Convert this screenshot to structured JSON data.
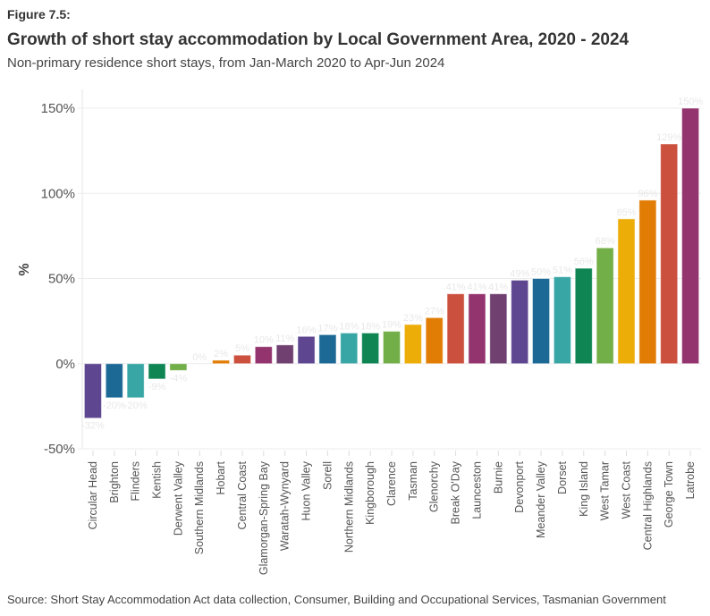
{
  "figure_label": "Figure 7.5:",
  "source": "Source: Short Stay Accommodation Act data collection, Consumer, Building and Occupational Services, Tasmanian Government",
  "chart_data": {
    "type": "bar",
    "title": "Growth of short stay accommodation by Local Government Area, 2020 - 2024",
    "subtitle": "Non-primary residence short stays, from Jan-March 2020 to Apr-Jun 2024",
    "xlabel": "",
    "ylabel": "%",
    "ylim": [
      -50,
      150
    ],
    "yticks": [
      -50,
      0,
      50,
      100,
      150
    ],
    "ytick_labels": [
      "-50%",
      "0%",
      "50%",
      "100%",
      "150%"
    ],
    "grid": true,
    "legend": "none",
    "categories": [
      "Circular Head",
      "Brighton",
      "Flinders",
      "Kentish",
      "Derwent Valley",
      "Southern Midlands",
      "Hobart",
      "Central Coast",
      "Glamorgan-Spring Bay",
      "Waratah-Wynyard",
      "Huon Valley",
      "Sorell",
      "Northern Midlands",
      "Kingborough",
      "Clarence",
      "Tasman",
      "Glenorchy",
      "Break O'Day",
      "Launceston",
      "Burnie",
      "Devonport",
      "Meander Valley",
      "Dorset",
      "King Island",
      "West Tamar",
      "West Coast",
      "Central Highlands",
      "George Town",
      "Latrobe"
    ],
    "values": [
      -32,
      -20,
      -20,
      -9,
      -4,
      0,
      2,
      5,
      10,
      11,
      16,
      17,
      18,
      18,
      19,
      23,
      27,
      41,
      41,
      41,
      49,
      50,
      51,
      56,
      68,
      85,
      96,
      129,
      150
    ],
    "data_labels": [
      "-32%",
      "-20%",
      "-20%",
      "-9%",
      "-4%",
      "0%",
      "2%",
      "5%",
      "10%",
      "11%",
      "16%",
      "17%",
      "18%",
      "18%",
      "19%",
      "23%",
      "27%",
      "41%",
      "41%",
      "41%",
      "49%",
      "50%",
      "51%",
      "56%",
      "68%",
      "85%",
      "96%",
      "129%",
      "150%"
    ],
    "palette": [
      "#5f4690",
      "#1d6996",
      "#38a6a5",
      "#0f8554",
      "#73af48",
      "#edad08",
      "#e17c05",
      "#cc503e",
      "#94346e",
      "#6f4070"
    ],
    "colors": [
      "#5f4690",
      "#1d6996",
      "#38a6a5",
      "#0f8554",
      "#73af48",
      "#edad08",
      "#e17c05",
      "#cc503e",
      "#94346e",
      "#6f4070",
      "#5f4690",
      "#1d6996",
      "#38a6a5",
      "#0f8554",
      "#73af48",
      "#edad08",
      "#e17c05",
      "#cc503e",
      "#94346e",
      "#6f4070",
      "#5f4690",
      "#1d6996",
      "#38a6a5",
      "#0f8554",
      "#73af48",
      "#edad08",
      "#e17c05",
      "#cc503e",
      "#94346e"
    ]
  }
}
